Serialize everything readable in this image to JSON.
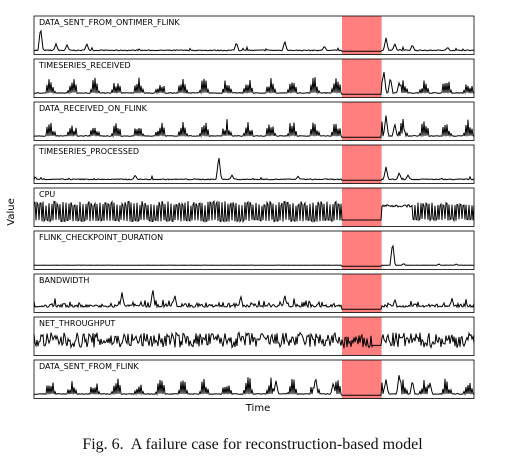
{
  "caption": {
    "label": "Fig. 6.",
    "text": "A failure case for reconstruction-based model"
  },
  "chart_data": {
    "type": "line",
    "xlabel": "Time",
    "ylabel": "Value",
    "grid": false,
    "x_range": [
      0,
      100
    ],
    "anomaly_region": {
      "start": 70,
      "end": 79,
      "color": "#ff7f7f"
    },
    "line_color": "#000000",
    "panels": [
      {
        "name": "DATA_SENT_FROM_ONTIMER_FLINK",
        "pattern": "spiky-low",
        "spikes": [
          [
            1.5,
            1.0
          ],
          [
            5,
            0.3
          ],
          [
            7.5,
            0.25
          ],
          [
            12,
            0.3
          ],
          [
            46,
            0.35
          ],
          [
            57,
            0.4
          ],
          [
            66,
            0.2
          ]
        ],
        "post_anomaly": [
          [
            80,
            0.55
          ],
          [
            82,
            0.3
          ],
          [
            86,
            0.25
          ],
          [
            94,
            0.15
          ]
        ]
      },
      {
        "name": "TIMESERIES_RECEIVED",
        "pattern": "periodic-spikes",
        "spikes": [],
        "post_anomaly": [
          [
            79.5,
            1.0
          ],
          [
            81,
            0.7
          ],
          [
            83,
            0.5
          ]
        ]
      },
      {
        "name": "DATA_RECEIVED_ON_FLINK",
        "pattern": "periodic-spikes",
        "spikes": [],
        "post_anomaly": [
          [
            80,
            0.9
          ],
          [
            82,
            0.55
          ],
          [
            84,
            0.35
          ]
        ]
      },
      {
        "name": "TIMESERIES_PROCESSED",
        "pattern": "spiky-low",
        "spikes": [
          [
            42,
            1.0
          ],
          [
            23,
            0.2
          ],
          [
            45,
            0.2
          ],
          [
            60,
            0.15
          ]
        ],
        "post_anomaly": [
          [
            80,
            0.55
          ],
          [
            83,
            0.3
          ],
          [
            85,
            0.2
          ]
        ]
      },
      {
        "name": "CPU",
        "pattern": "dense-oscillation",
        "spikes": [],
        "post_anomaly": []
      },
      {
        "name": "FLINK_CHECKPOINT_DURATION",
        "pattern": "flat",
        "spikes": [],
        "post_anomaly": [
          [
            81.5,
            1.0
          ],
          [
            84,
            0.1
          ],
          [
            92,
            0.08
          ],
          [
            96,
            0.08
          ]
        ]
      },
      {
        "name": "BANDWIDTH",
        "pattern": "noisy-spikes",
        "spikes": [
          [
            20,
            0.7
          ],
          [
            27,
            0.85
          ],
          [
            32,
            0.6
          ],
          [
            47,
            0.55
          ],
          [
            57,
            0.6
          ]
        ],
        "post_anomaly": [
          [
            82,
            0.4
          ],
          [
            95,
            0.45
          ]
        ]
      },
      {
        "name": "NET_THROUGHPUT",
        "pattern": "dense-noise",
        "spikes": [],
        "post_anomaly": []
      },
      {
        "name": "DATA_SENT_FROM_FLINK",
        "pattern": "periodic-spikes",
        "spikes": [
          [
            55,
            0.6
          ],
          [
            64,
            0.75
          ],
          [
            68,
            0.5
          ]
        ],
        "post_anomaly": [
          [
            80,
            0.65
          ],
          [
            83,
            0.9
          ],
          [
            86,
            0.6
          ],
          [
            90,
            0.5
          ]
        ]
      }
    ]
  }
}
